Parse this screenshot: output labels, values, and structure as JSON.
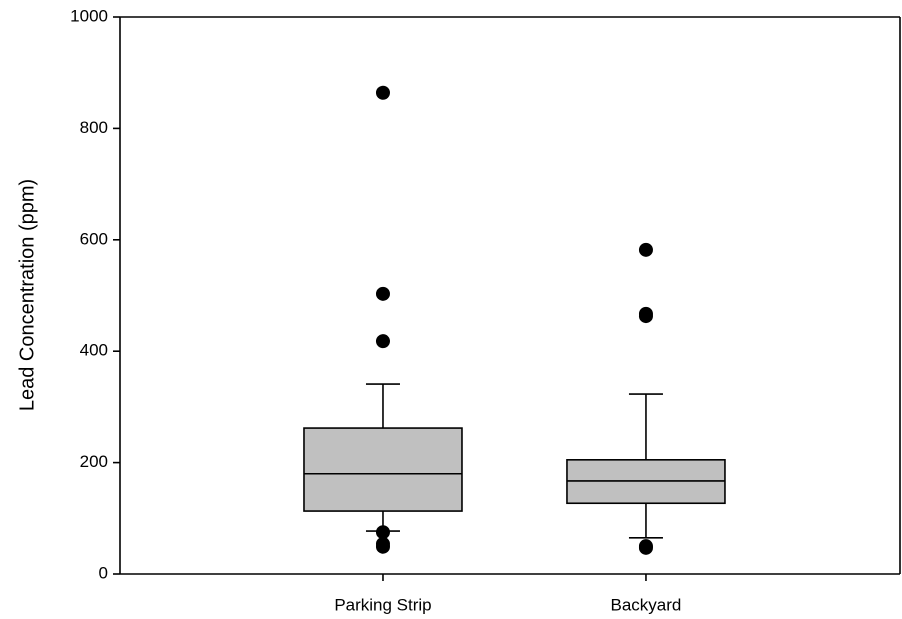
{
  "chart_data": {
    "type": "box",
    "ylabel": "Lead Concentration (ppm)",
    "categories": [
      "Parking Strip",
      "Backyard"
    ],
    "whisker_low": [
      77,
      65
    ],
    "q1": [
      113,
      127
    ],
    "median": [
      180,
      167
    ],
    "q3": [
      262,
      205
    ],
    "whisker_high": [
      341,
      323
    ],
    "outliers": [
      [
        864,
        503,
        418,
        75,
        54,
        49
      ],
      [
        582,
        467,
        463,
        50,
        47
      ]
    ],
    "color": "#c0c0c0",
    "ylim": [
      0,
      1000
    ],
    "yticks": [
      0,
      200,
      400,
      600,
      800,
      1000
    ]
  }
}
